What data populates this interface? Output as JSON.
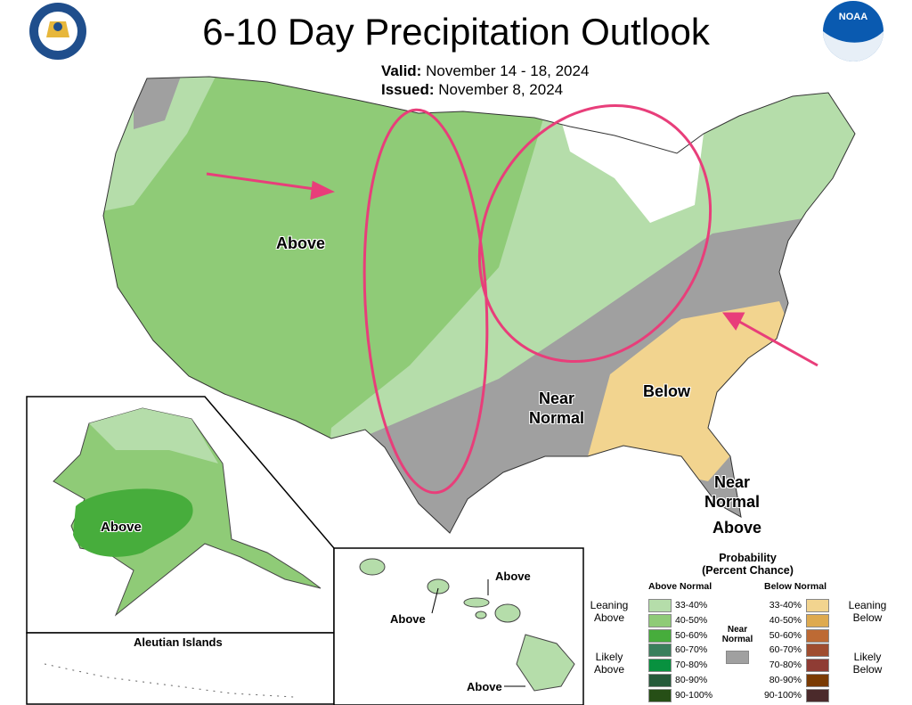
{
  "title": "6-10 Day Precipitation Outlook",
  "valid_label": "Valid:",
  "valid_value": "November 14 - 18, 2024",
  "issued_label": "Issued:",
  "issued_value": "November 8, 2024",
  "logos": {
    "left": "DEPARTMENT OF COMMERCE · UNITED STATES OF AMERICA",
    "right": "NOAA"
  },
  "map_labels": {
    "above_west": "Above",
    "near_normal_south": "Near Normal",
    "below_se": "Below",
    "near_normal_fl": "Near Normal",
    "above_fl": "Above",
    "alaska_above": "Above",
    "aleutian": "Aleutian Islands",
    "hawaii_above_1": "Above",
    "hawaii_above_2": "Above",
    "hawaii_above_3": "Above"
  },
  "colors": {
    "above_33_40": "#b5ddaa",
    "above_40_50": "#8fcb77",
    "above_50_60": "#47ad3c",
    "above_60_70": "#3a7f5c",
    "above_70_80": "#08913f",
    "above_80_90": "#255a3a",
    "above_90_100": "#264f16",
    "near_normal": "#a0a0a0",
    "below_33_40": "#f2d48f",
    "below_40_50": "#deaa4f",
    "below_50_60": "#bd6a34",
    "below_60_70": "#9f4d2f",
    "below_70_80": "#8f3c34",
    "below_80_90": "#7a3b03",
    "below_90_100": "#4b2a2b",
    "annotation": "#e83e7a"
  },
  "legend": {
    "title": "Probability",
    "subtitle": "(Percent Chance)",
    "above_header": "Above Normal",
    "below_header": "Below Normal",
    "leaning_above": "Leaning Above",
    "likely_above": "Likely Above",
    "leaning_below": "Leaning Below",
    "likely_below": "Likely Below",
    "near_normal": "Near Normal",
    "above": [
      {
        "range": "33-40%",
        "color": "#b5ddaa"
      },
      {
        "range": "40-50%",
        "color": "#8fcb77"
      },
      {
        "range": "50-60%",
        "color": "#47ad3c"
      },
      {
        "range": "60-70%",
        "color": "#3a7f5c"
      },
      {
        "range": "70-80%",
        "color": "#08913f"
      },
      {
        "range": "80-90%",
        "color": "#255a3a"
      },
      {
        "range": "90-100%",
        "color": "#264f16"
      }
    ],
    "below": [
      {
        "range": "33-40%",
        "color": "#f2d48f"
      },
      {
        "range": "40-50%",
        "color": "#deaa4f"
      },
      {
        "range": "50-60%",
        "color": "#bd6a34"
      },
      {
        "range": "60-70%",
        "color": "#9f4d2f"
      },
      {
        "range": "70-80%",
        "color": "#8f3c34"
      },
      {
        "range": "80-90%",
        "color": "#7a3b03"
      },
      {
        "range": "90-100%",
        "color": "#4b2a2b"
      }
    ]
  }
}
